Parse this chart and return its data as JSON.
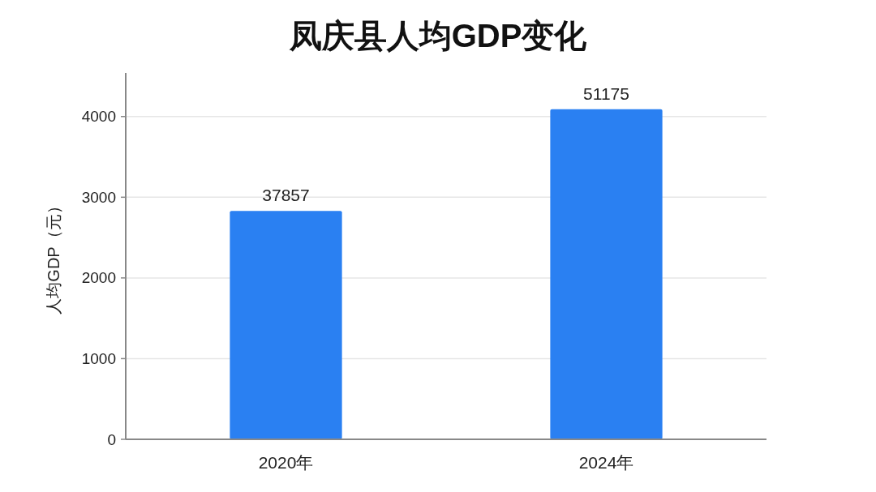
{
  "chart_data": {
    "type": "bar",
    "title": "凤庆县人均GDP变化",
    "ylabel": "人均GDP（元）",
    "categories": [
      "2020年",
      "2024年"
    ],
    "values": [
      2830,
      4090
    ],
    "color": "#2a80f2",
    "annotations": [
      {
        "text": "37857",
        "x": "2020年",
        "y": 2830
      },
      {
        "text": "51175",
        "x": "2024年",
        "y": 4090
      }
    ],
    "ylim": [
      0,
      4540
    ],
    "yticks": [
      0,
      1000,
      2000,
      3000,
      4000
    ],
    "grid": "y"
  }
}
